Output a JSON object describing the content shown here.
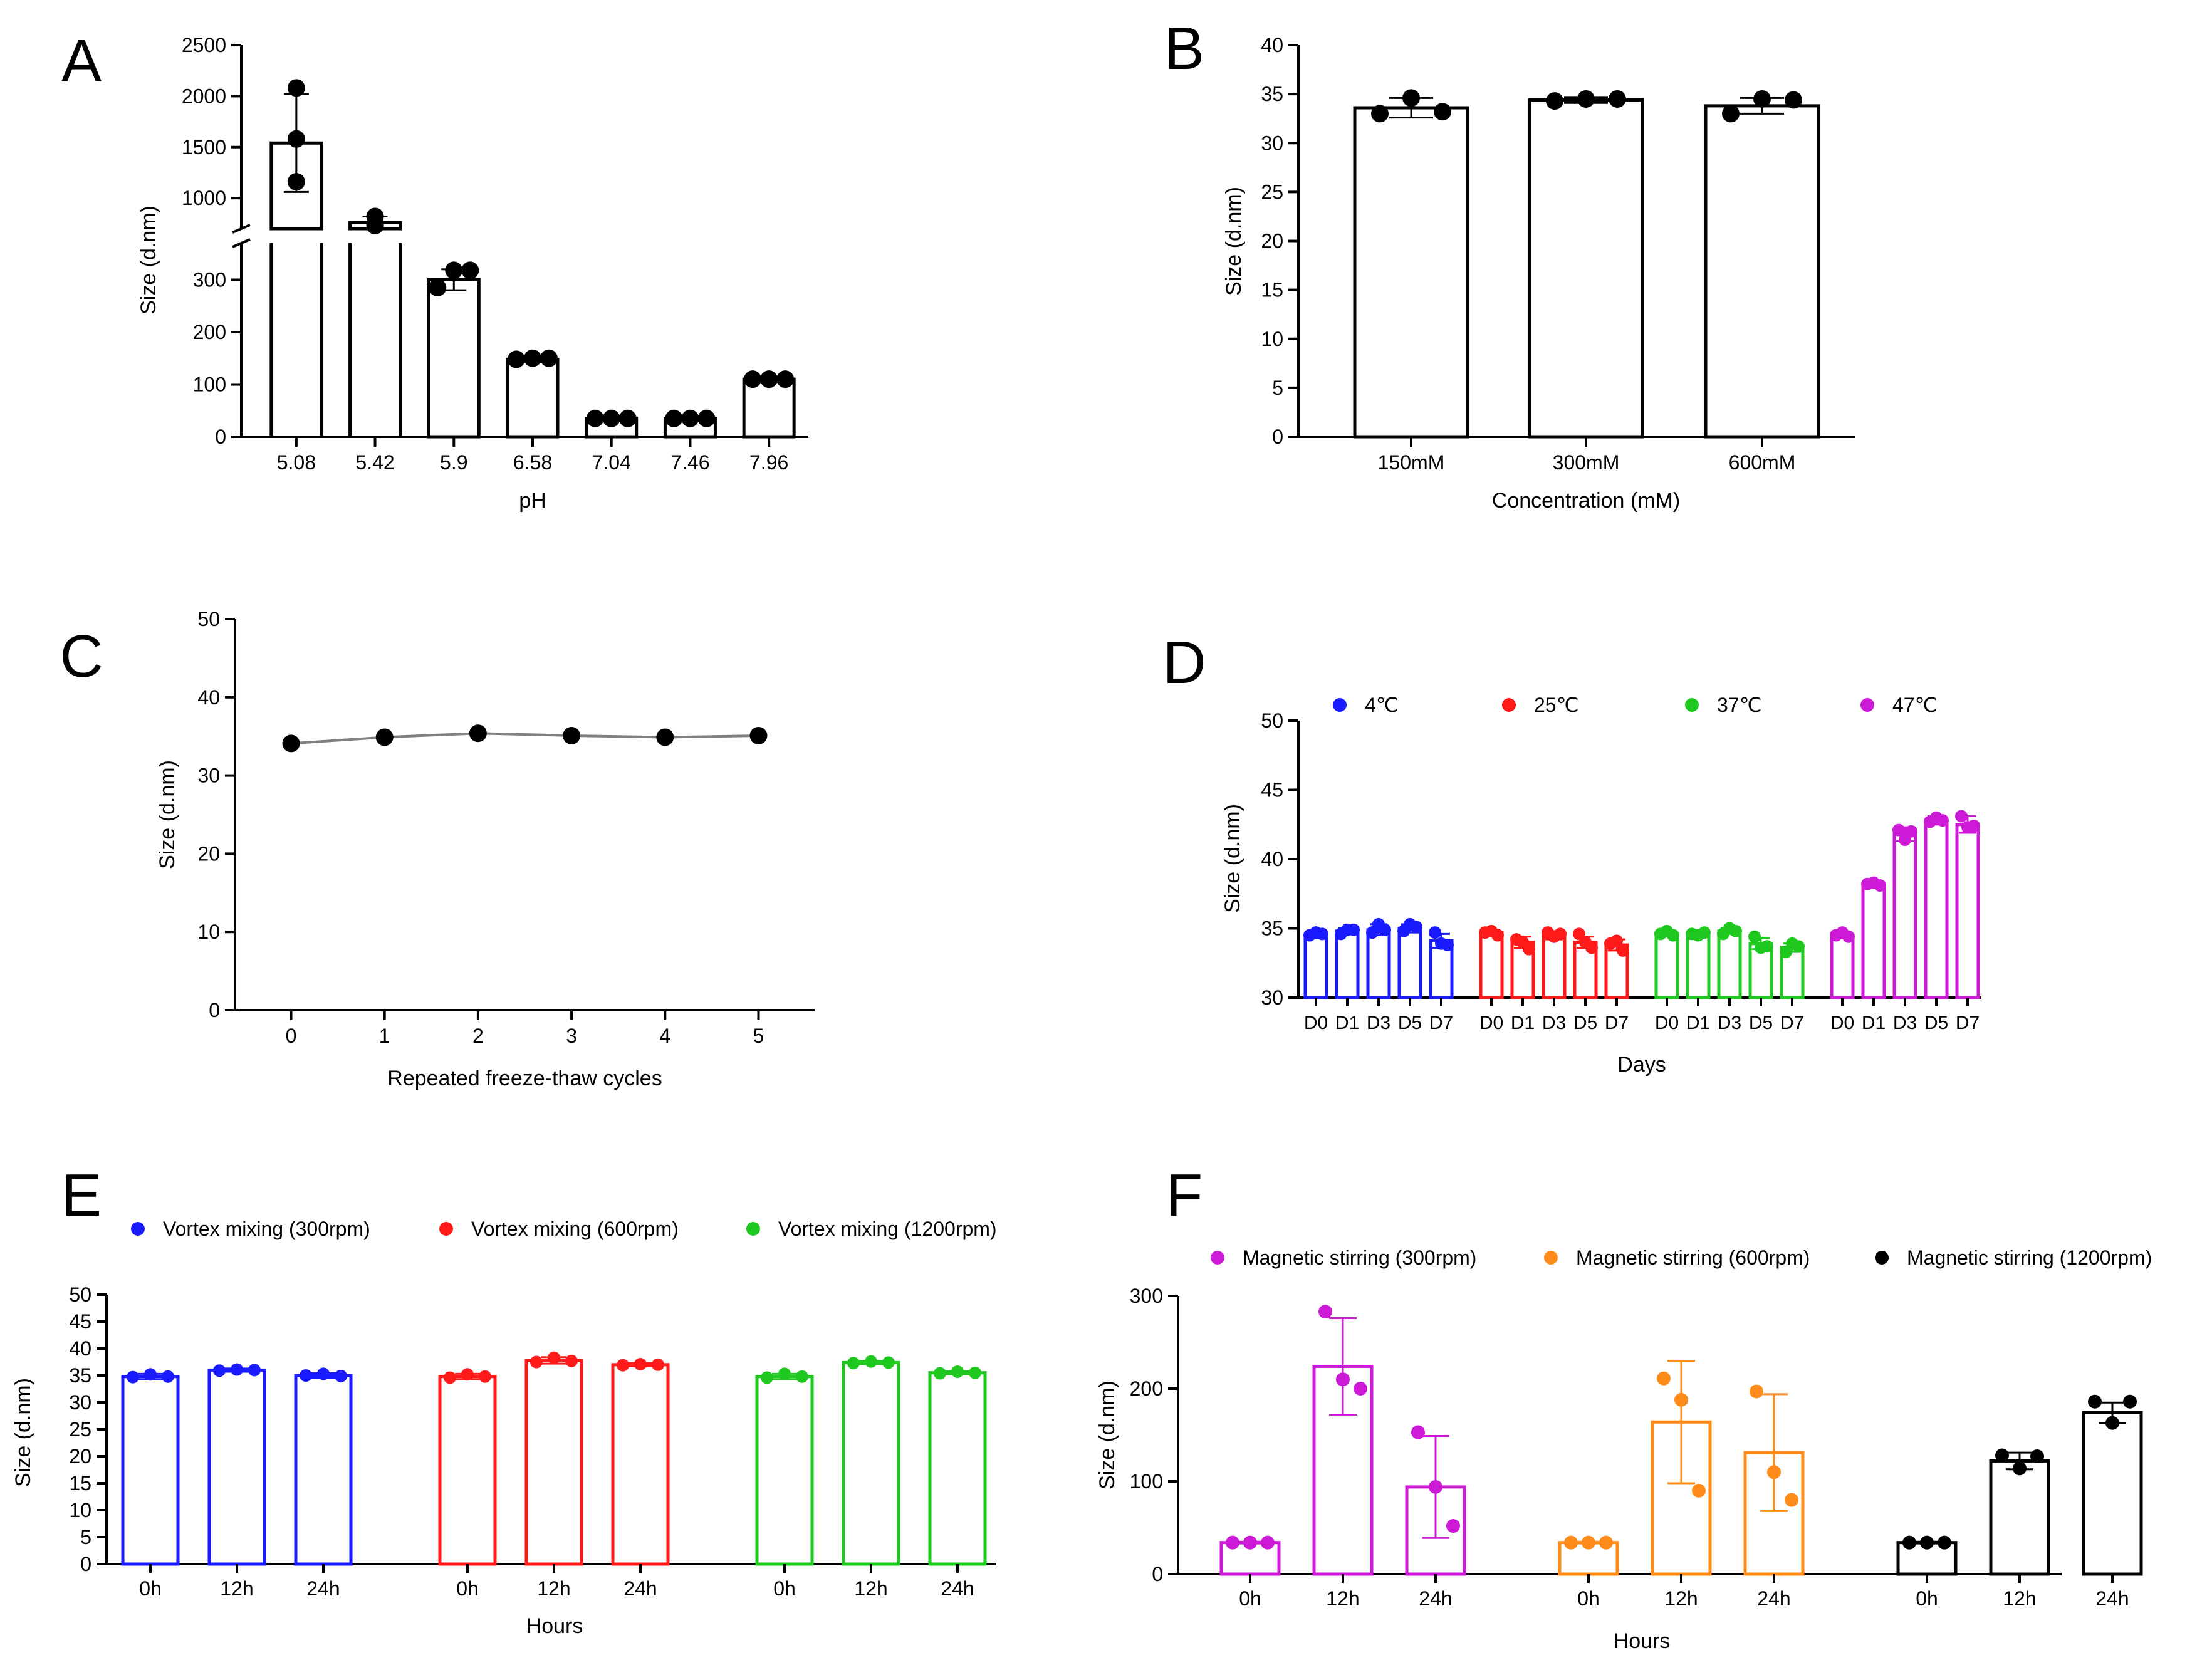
{
  "figure": {
    "background": "#ffffff"
  },
  "chart_data": [
    {
      "panel": "A",
      "type": "bar",
      "title": "",
      "xlabel": "pH",
      "ylabel": "Size (d.nm)",
      "categories": [
        "5.08",
        "5.42",
        "5.9",
        "6.58",
        "7.04",
        "7.46",
        "7.96"
      ],
      "values": [
        1540,
        760,
        300,
        148,
        35,
        35,
        110
      ],
      "errors": [
        480,
        60,
        20,
        5,
        3,
        3,
        5
      ],
      "points": [
        [
          2080,
          1580,
          1160
        ],
        [
          730,
          820,
          740
        ],
        [
          285,
          318,
          318
        ],
        [
          148,
          150,
          150
        ],
        [
          35,
          35,
          35
        ],
        [
          35,
          35,
          35
        ],
        [
          110,
          110,
          110
        ]
      ],
      "axis_break": {
        "lower_range": [
          0,
          370
        ],
        "upper_range": [
          700,
          2500
        ]
      },
      "yticks_lower": [
        "0",
        "100",
        "200",
        "300"
      ],
      "yticks_upper": [
        "1000",
        "1500",
        "2000",
        "2500"
      ],
      "color": "#000000"
    },
    {
      "panel": "B",
      "type": "bar",
      "title": "",
      "xlabel": "Concentration (mM)",
      "ylabel": "Size (d.nm)",
      "categories": [
        "150mM",
        "300mM",
        "600mM"
      ],
      "values": [
        33.6,
        34.4,
        33.8
      ],
      "errors": [
        1.0,
        0.3,
        0.8
      ],
      "points": [
        [
          33.0,
          34.6,
          33.2
        ],
        [
          34.3,
          34.5,
          34.5
        ],
        [
          33.0,
          34.5,
          34.4
        ]
      ],
      "ylim": [
        0,
        40
      ],
      "yticks": [
        "0",
        "5",
        "10",
        "15",
        "20",
        "25",
        "30",
        "35",
        "40"
      ],
      "color": "#000000"
    },
    {
      "panel": "C",
      "type": "line",
      "title": "",
      "xlabel": "Repeated freeze-thaw cycles",
      "ylabel": "Size (d.nm)",
      "x": [
        0,
        1,
        2,
        3,
        4,
        5
      ],
      "values": [
        34.1,
        34.9,
        35.4,
        35.1,
        34.9,
        35.1
      ],
      "xlim": [
        -0.6,
        5.6
      ],
      "ylim": [
        0,
        50
      ],
      "xticks": [
        "0",
        "1",
        "2",
        "3",
        "4",
        "5"
      ],
      "yticks": [
        "0",
        "10",
        "20",
        "30",
        "40",
        "50"
      ],
      "line_color": "#808080",
      "marker_color": "#000000"
    },
    {
      "panel": "D",
      "type": "bar",
      "title": "",
      "xlabel": "Days",
      "ylabel": "Size (d.nm)",
      "categories": [
        "D0",
        "D1",
        "D3",
        "D5",
        "D7"
      ],
      "ylim": [
        30,
        50
      ],
      "yticks": [
        "30",
        "35",
        "40",
        "45",
        "50"
      ],
      "series": [
        {
          "name": "4℃",
          "color": "#1a1aff",
          "values": [
            34.5,
            34.8,
            34.9,
            35.0,
            34.1
          ],
          "errors": [
            0.2,
            0.2,
            0.4,
            0.3,
            0.5
          ],
          "points": [
            [
              34.5,
              34.7,
              34.6
            ],
            [
              34.6,
              34.9,
              34.9
            ],
            [
              34.7,
              35.3,
              34.9
            ],
            [
              34.8,
              35.3,
              35.1
            ],
            [
              34.7,
              33.9,
              33.8
            ]
          ]
        },
        {
          "name": "25℃",
          "color": "#ff1a1a",
          "values": [
            34.7,
            34.0,
            34.5,
            34.0,
            33.8
          ],
          "errors": [
            0.2,
            0.4,
            0.3,
            0.4,
            0.4
          ],
          "points": [
            [
              34.7,
              34.8,
              34.5
            ],
            [
              34.2,
              34.0,
              33.5
            ],
            [
              34.7,
              34.4,
              34.6
            ],
            [
              34.6,
              34.0,
              33.6
            ],
            [
              33.9,
              34.1,
              33.4
            ]
          ]
        },
        {
          "name": "37℃",
          "color": "#1ec81e",
          "values": [
            34.6,
            34.6,
            34.8,
            33.9,
            33.6
          ],
          "errors": [
            0.2,
            0.2,
            0.2,
            0.4,
            0.3
          ],
          "points": [
            [
              34.6,
              34.8,
              34.5
            ],
            [
              34.6,
              34.5,
              34.7
            ],
            [
              34.6,
              35.0,
              34.8
            ],
            [
              34.4,
              33.6,
              33.7
            ],
            [
              33.3,
              33.9,
              33.7
            ]
          ]
        },
        {
          "name": "47℃",
          "color": "#cc1ad6",
          "values": [
            34.5,
            38.2,
            41.8,
            42.8,
            42.5
          ],
          "errors": [
            0.2,
            0.2,
            0.5,
            0.3,
            0.6
          ],
          "points": [
            [
              34.5,
              34.7,
              34.4
            ],
            [
              38.2,
              38.3,
              38.1
            ],
            [
              42.1,
              41.4,
              42.0
            ],
            [
              42.7,
              43.0,
              42.8
            ],
            [
              43.1,
              42.3,
              42.4
            ]
          ]
        }
      ]
    },
    {
      "panel": "E",
      "type": "bar",
      "title": "",
      "xlabel": "Hours",
      "ylabel": "Size (d.nm)",
      "categories": [
        "0h",
        "12h",
        "24h"
      ],
      "ylim": [
        0,
        50
      ],
      "yticks": [
        "0",
        "5",
        "10",
        "15",
        "20",
        "25",
        "30",
        "35",
        "40",
        "45",
        "50"
      ],
      "series": [
        {
          "name": "Vortex mixing (300rpm)",
          "color": "#1a1aff",
          "values": [
            34.8,
            36.0,
            35.0
          ],
          "errors": [
            0.5,
            0.3,
            0.4
          ],
          "points": [
            [
              34.7,
              35.2,
              34.8
            ],
            [
              35.9,
              36.1,
              36.0
            ],
            [
              35.0,
              35.3,
              34.9
            ]
          ]
        },
        {
          "name": "Vortex mixing (600rpm)",
          "color": "#ff1a1a",
          "values": [
            34.8,
            37.8,
            37.0
          ],
          "errors": [
            0.5,
            0.6,
            0.3
          ],
          "points": [
            [
              34.6,
              35.2,
              34.8
            ],
            [
              37.5,
              38.3,
              37.7
            ],
            [
              36.9,
              37.1,
              37.0
            ]
          ]
        },
        {
          "name": "Vortex mixing (1200rpm)",
          "color": "#1ec81e",
          "values": [
            34.8,
            37.4,
            35.5
          ],
          "errors": [
            0.5,
            0.3,
            0.3
          ],
          "points": [
            [
              34.6,
              35.3,
              34.8
            ],
            [
              37.3,
              37.6,
              37.4
            ],
            [
              35.4,
              35.7,
              35.5
            ]
          ]
        }
      ]
    },
    {
      "panel": "F",
      "type": "bar",
      "title": "",
      "xlabel": "Hours",
      "ylabel": "Size (d.nm)",
      "categories": [
        "0h",
        "12h",
        "24h"
      ],
      "ylim": [
        0,
        300
      ],
      "yticks": [
        "0",
        "100",
        "200",
        "300"
      ],
      "series": [
        {
          "name": "Magnetic stirring (300rpm)",
          "color": "#cc1ad6",
          "values": [
            34,
            224,
            94
          ],
          "errors": [
            1,
            52,
            55
          ],
          "points": [
            [
              34,
              34,
              34
            ],
            [
              283,
              210,
              200
            ],
            [
              153,
              94,
              52
            ]
          ]
        },
        {
          "name": "Magnetic stirring (600rpm)",
          "color": "#ff8c1a",
          "values": [
            34,
            164,
            131
          ],
          "errors": [
            1,
            66,
            63
          ],
          "points": [
            [
              34,
              34,
              34
            ],
            [
              211,
              188,
              90
            ],
            [
              197,
              110,
              80
            ]
          ]
        },
        {
          "name": "Magnetic stirring (1200rpm)",
          "color": "#000000",
          "values": [
            34,
            122,
            174
          ],
          "errors": [
            1,
            9,
            11
          ],
          "points": [
            [
              34,
              34,
              34
            ],
            [
              128,
              114,
              127
            ],
            [
              186,
              163,
              186
            ]
          ]
        }
      ]
    }
  ]
}
